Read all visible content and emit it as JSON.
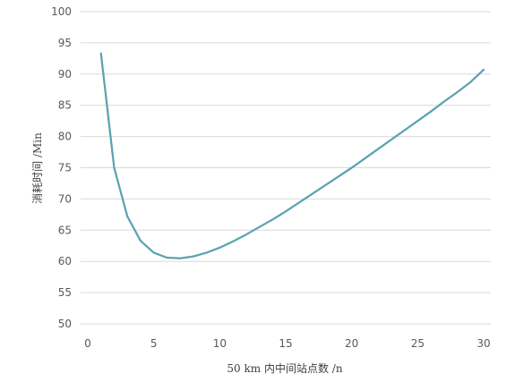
{
  "chart_data": {
    "type": "line",
    "title": "",
    "xlabel": "50 km 内中间站点数 /n",
    "ylabel": "消耗时间 /Min",
    "xlim": [
      0,
      30
    ],
    "ylim": [
      50,
      100
    ],
    "xticks": [
      0,
      5,
      10,
      15,
      20,
      25,
      30
    ],
    "yticks": [
      50,
      55,
      60,
      65,
      70,
      75,
      80,
      85,
      90,
      95,
      100
    ],
    "grid": "horizontal",
    "legend": "none",
    "series": [
      {
        "color": "#5ba3b0",
        "x": [
          1,
          2,
          3,
          4,
          5,
          6,
          7,
          8,
          9,
          10,
          11,
          12,
          13,
          14,
          15,
          16,
          17,
          18,
          19,
          20,
          21,
          22,
          23,
          24,
          25,
          26,
          27,
          28,
          29,
          30
        ],
        "y": [
          93.3,
          75.0,
          67.2,
          63.3,
          61.4,
          60.6,
          60.5,
          60.8,
          61.4,
          62.2,
          63.2,
          64.3,
          65.5,
          66.7,
          68.0,
          69.4,
          70.8,
          72.2,
          73.6,
          75.0,
          76.5,
          78.0,
          79.5,
          81.0,
          82.5,
          84.0,
          85.6,
          87.1,
          88.7,
          90.7
        ]
      }
    ]
  }
}
